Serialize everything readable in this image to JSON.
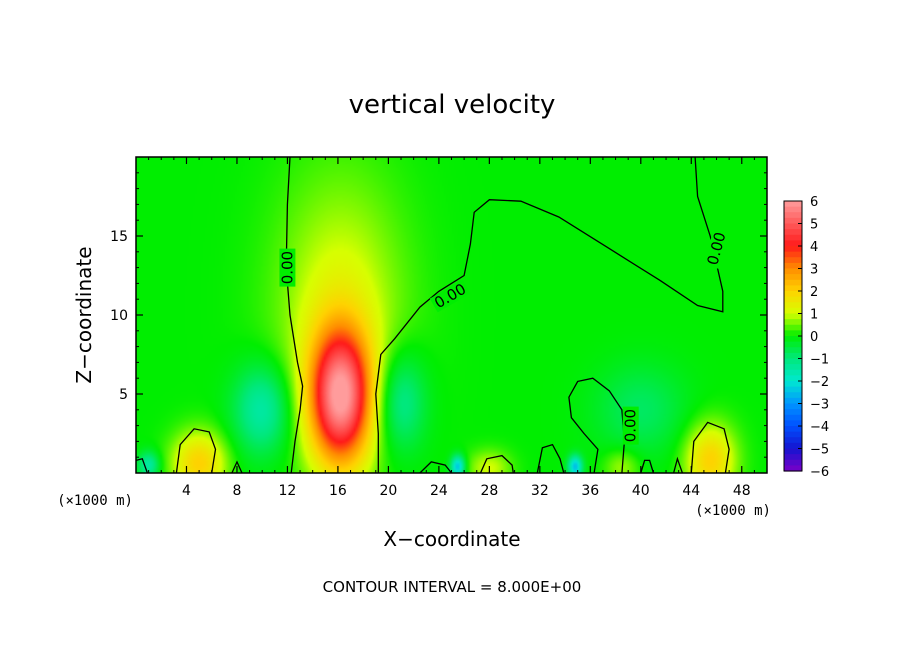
{
  "chart_data": {
    "type": "heatmap",
    "title": "vertical velocity",
    "xlabel": "X−coordinate",
    "ylabel": "Z−coordinate",
    "x_unit": "(×1000 m)",
    "xlim": [
      0,
      50
    ],
    "ylim": [
      0,
      20
    ],
    "xticks": [
      4,
      8,
      12,
      16,
      20,
      24,
      28,
      32,
      36,
      40,
      44,
      48
    ],
    "yticks": [
      5,
      10,
      15
    ],
    "colorbar": {
      "ticks": [
        6,
        5,
        4,
        3,
        2,
        1,
        0,
        -1,
        -2,
        -3,
        -4,
        -5,
        -6
      ],
      "tick_labels": [
        "6",
        "5",
        "4",
        "3",
        "2",
        "1",
        "0",
        "−1",
        "−2",
        "−3",
        "−4",
        "−5",
        "−6"
      ],
      "colors": [
        "#ff9c9c",
        "#ff5a5a",
        "#ff1a1a",
        "#ff8c00",
        "#ffd200",
        "#d7ff00",
        "#00ee00",
        "#00e87a",
        "#00e8d0",
        "#0096ff",
        "#0050ff",
        "#1414d0",
        "#7a00c8"
      ]
    },
    "contour_interval": "CONTOUR INTERVAL = 8.000E+00",
    "contour_labels": [
      "0.00",
      "0.00",
      "0.00",
      "0.00"
    ],
    "features": [
      {
        "kind": "updraft",
        "x": 16.2,
        "z": 4.8,
        "value": 5.5,
        "sx": 1.7,
        "sz": 3.0
      },
      {
        "kind": "updraft",
        "x": 16.2,
        "z": 10.0,
        "value": 1.2,
        "sx": 3.5,
        "sz": 6.0
      },
      {
        "kind": "updraft",
        "x": 5.0,
        "z": 0.6,
        "value": 2.0,
        "sx": 1.5,
        "sz": 1.4
      },
      {
        "kind": "updraft",
        "x": 45.5,
        "z": 0.8,
        "value": 2.0,
        "sx": 1.4,
        "sz": 1.6
      },
      {
        "kind": "updraft",
        "x": 28.0,
        "z": 0.3,
        "value": 1.0,
        "sx": 1.2,
        "sz": 0.8
      },
      {
        "kind": "updraft",
        "x": 38.5,
        "z": 0.4,
        "value": 0.8,
        "sx": 1.0,
        "sz": 0.8
      },
      {
        "kind": "downdraft",
        "x": 10.0,
        "z": 4.0,
        "value": -1.6,
        "sx": 1.6,
        "sz": 2.0
      },
      {
        "kind": "downdraft",
        "x": 21.0,
        "z": 4.5,
        "value": -1.4,
        "sx": 1.4,
        "sz": 2.2
      },
      {
        "kind": "downdraft",
        "x": 40.0,
        "z": 4.0,
        "value": -0.8,
        "sx": 2.5,
        "sz": 2.0
      },
      {
        "kind": "downdraft",
        "x": 25.5,
        "z": 0.4,
        "value": -2.5,
        "sx": 0.4,
        "sz": 0.5
      },
      {
        "kind": "downdraft",
        "x": 34.8,
        "z": 0.4,
        "value": -2.5,
        "sx": 0.4,
        "sz": 0.5
      },
      {
        "kind": "downdraft",
        "x": 1.0,
        "z": 0.5,
        "value": -1.5,
        "sx": 0.6,
        "sz": 0.6
      }
    ],
    "zero_contours": [
      [
        [
          12.2,
          20
        ],
        [
          12.0,
          17
        ],
        [
          11.9,
          13
        ],
        [
          12.2,
          10
        ],
        [
          12.8,
          7
        ],
        [
          13.2,
          5.5
        ],
        [
          13.0,
          4
        ],
        [
          12.6,
          2
        ],
        [
          12.3,
          0
        ]
      ],
      [
        [
          19.2,
          0
        ],
        [
          19.2,
          2.5
        ],
        [
          19.0,
          5
        ],
        [
          19.4,
          7.5
        ],
        [
          20.5,
          8.5
        ],
        [
          22.5,
          10.5
        ],
        [
          24.0,
          11.5
        ],
        [
          26.0,
          12.5
        ],
        [
          26.5,
          14.5
        ],
        [
          26.8,
          16.5
        ],
        [
          28.0,
          17.3
        ],
        [
          30.5,
          17.2
        ],
        [
          33.5,
          16.2
        ],
        [
          37.5,
          14.2
        ],
        [
          41.5,
          12.2
        ],
        [
          44.5,
          10.6
        ],
        [
          46.5,
          10.2
        ],
        [
          46.5,
          11.5
        ],
        [
          45.5,
          15.0
        ],
        [
          44.5,
          17.5
        ],
        [
          44.3,
          20
        ]
      ],
      [
        [
          36.3,
          0
        ],
        [
          36.6,
          1.5
        ],
        [
          35.5,
          2.5
        ],
        [
          34.5,
          3.5
        ],
        [
          34.3,
          4.8
        ],
        [
          35.0,
          5.8
        ],
        [
          36.2,
          6.0
        ],
        [
          37.5,
          5.2
        ],
        [
          38.5,
          4.0
        ],
        [
          38.7,
          2.0
        ],
        [
          38.5,
          0
        ]
      ],
      [
        [
          3.2,
          0
        ],
        [
          3.5,
          1.8
        ],
        [
          4.6,
          2.8
        ],
        [
          5.8,
          2.6
        ],
        [
          6.3,
          1.5
        ],
        [
          6.0,
          0
        ]
      ],
      [
        [
          44.0,
          0
        ],
        [
          44.2,
          2.0
        ],
        [
          45.3,
          3.2
        ],
        [
          46.6,
          2.8
        ],
        [
          47.0,
          1.5
        ],
        [
          46.7,
          0
        ]
      ],
      [
        [
          22.5,
          0
        ],
        [
          23.4,
          0.7
        ],
        [
          24.5,
          0.5
        ],
        [
          25.0,
          0
        ]
      ],
      [
        [
          27.3,
          0
        ],
        [
          27.8,
          0.9
        ],
        [
          29.0,
          1.1
        ],
        [
          29.8,
          0.5
        ],
        [
          29.9,
          0
        ]
      ],
      [
        [
          31.8,
          0
        ],
        [
          32.2,
          1.6
        ],
        [
          33.0,
          1.8
        ],
        [
          33.6,
          0.9
        ],
        [
          33.9,
          0
        ]
      ],
      [
        [
          7.6,
          0
        ],
        [
          8.0,
          0.7
        ],
        [
          8.4,
          0
        ]
      ],
      [
        [
          40.0,
          0
        ],
        [
          40.3,
          0.8
        ],
        [
          40.7,
          0.8
        ],
        [
          41.0,
          0
        ]
      ],
      [
        [
          42.6,
          0
        ],
        [
          42.9,
          0.9
        ],
        [
          43.3,
          0
        ]
      ],
      [
        [
          0.0,
          0.8
        ],
        [
          0.5,
          0.9
        ],
        [
          0.9,
          0
        ]
      ]
    ],
    "contour_label_positions": [
      {
        "x": 12.0,
        "z": 13.0,
        "angle": -90
      },
      {
        "x": 24.9,
        "z": 11.2,
        "angle": -30
      },
      {
        "x": 39.2,
        "z": 3.0,
        "angle": -90
      },
      {
        "x": 46.0,
        "z": 14.2,
        "angle": -75
      }
    ]
  }
}
